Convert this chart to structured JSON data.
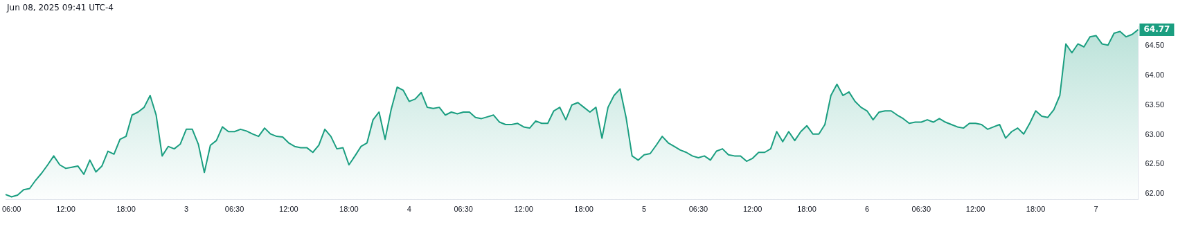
{
  "chart_data": {
    "type": "area",
    "annotations": [
      "Jun 08, 2025 09:41 UTC-4"
    ],
    "categories": [
      null,
      "06:00",
      null,
      null,
      null,
      null,
      null,
      null,
      null,
      null,
      "12:00",
      null,
      null,
      null,
      null,
      null,
      null,
      null,
      null,
      null,
      "18:00",
      null,
      null,
      null,
      null,
      null,
      null,
      null,
      null,
      null,
      "3",
      null,
      null,
      null,
      null,
      null,
      null,
      null,
      "06:30",
      null,
      null,
      null,
      null,
      null,
      null,
      null,
      null,
      "12:00",
      null,
      null,
      null,
      null,
      null,
      null,
      null,
      null,
      null,
      "18:00",
      null,
      null,
      null,
      null,
      null,
      null,
      null,
      null,
      null,
      "4",
      null,
      null,
      null,
      null,
      null,
      null,
      null,
      null,
      "06:30",
      null,
      null,
      null,
      null,
      null,
      null,
      null,
      null,
      null,
      "12:00",
      null,
      null,
      null,
      null,
      null,
      null,
      null,
      null,
      null,
      "18:00",
      null,
      null,
      null,
      null,
      null,
      null,
      null,
      null,
      null,
      "5",
      null,
      null,
      null,
      null,
      null,
      null,
      null,
      null,
      "06:30",
      null,
      null,
      null,
      null,
      null,
      null,
      null,
      null,
      "12:00",
      null,
      null,
      null,
      null,
      null,
      null,
      null,
      null,
      "18:00",
      null,
      null,
      null,
      null,
      null,
      null,
      null,
      null,
      null,
      "6",
      null,
      null,
      null,
      null,
      null,
      null,
      null,
      null,
      "06:30",
      null,
      null,
      null,
      null,
      null,
      null,
      null,
      null,
      "12:00",
      null,
      null,
      null,
      null,
      null,
      null,
      null,
      null,
      null,
      "18:00",
      null,
      null,
      null,
      null,
      null,
      null,
      null,
      null,
      null,
      "7",
      null,
      null,
      null,
      null,
      null,
      null,
      null
    ],
    "series": [
      {
        "color": "#1a9e80",
        "values": [
          61.99,
          61.95,
          61.98,
          62.07,
          62.09,
          62.23,
          62.35,
          62.49,
          62.64,
          62.49,
          62.43,
          62.45,
          62.47,
          62.33,
          62.57,
          62.37,
          62.47,
          62.72,
          62.67,
          62.92,
          62.97,
          63.33,
          63.38,
          63.46,
          63.66,
          63.33,
          62.64,
          62.8,
          62.76,
          62.84,
          63.09,
          63.09,
          62.84,
          62.36,
          62.82,
          62.9,
          63.13,
          63.05,
          63.05,
          63.09,
          63.06,
          63.01,
          62.97,
          63.11,
          63.01,
          62.97,
          62.96,
          62.86,
          62.8,
          62.78,
          62.78,
          62.7,
          62.82,
          63.09,
          62.97,
          62.76,
          62.78,
          62.49,
          62.64,
          62.8,
          62.86,
          63.25,
          63.38,
          62.92,
          63.42,
          63.8,
          63.75,
          63.56,
          63.6,
          63.71,
          63.46,
          63.44,
          63.46,
          63.33,
          63.38,
          63.35,
          63.38,
          63.38,
          63.29,
          63.27,
          63.3,
          63.33,
          63.21,
          63.17,
          63.17,
          63.19,
          63.13,
          63.11,
          63.23,
          63.19,
          63.19,
          63.4,
          63.46,
          63.25,
          63.5,
          63.54,
          63.46,
          63.38,
          63.46,
          62.94,
          63.46,
          63.66,
          63.77,
          63.29,
          62.64,
          62.57,
          62.66,
          62.68,
          62.82,
          62.97,
          62.86,
          62.8,
          62.74,
          62.7,
          62.64,
          62.61,
          62.64,
          62.57,
          62.72,
          62.76,
          62.66,
          62.64,
          62.64,
          62.55,
          62.6,
          62.7,
          62.7,
          62.76,
          63.05,
          62.88,
          63.05,
          62.9,
          63.05,
          63.15,
          63.01,
          63.01,
          63.17,
          63.66,
          63.85,
          63.66,
          63.72,
          63.56,
          63.46,
          63.4,
          63.25,
          63.38,
          63.4,
          63.4,
          63.33,
          63.27,
          63.19,
          63.21,
          63.21,
          63.25,
          63.21,
          63.27,
          63.21,
          63.17,
          63.13,
          63.11,
          63.19,
          63.19,
          63.17,
          63.09,
          63.13,
          63.17,
          62.94,
          63.05,
          63.11,
          63.01,
          63.19,
          63.4,
          63.31,
          63.29,
          63.42,
          63.66,
          64.53,
          64.38,
          64.53,
          64.48,
          64.65,
          64.67,
          64.53,
          64.51,
          64.71,
          64.74,
          64.65,
          64.69,
          64.77
        ],
        "value_labels": [
          null,
          null,
          null,
          null,
          null,
          null,
          null,
          null,
          null,
          null,
          null,
          null,
          null,
          null,
          null,
          null,
          null,
          null,
          null,
          null,
          null,
          null,
          null,
          null,
          null,
          null,
          null,
          null,
          null,
          null,
          null,
          null,
          null,
          null,
          null,
          null,
          null,
          null,
          null,
          null,
          null,
          null,
          null,
          null,
          null,
          null,
          null,
          null,
          null,
          null,
          null,
          null,
          null,
          null,
          null,
          null,
          null,
          null,
          null,
          null,
          null,
          null,
          null,
          null,
          null,
          null,
          null,
          null,
          null,
          null,
          null,
          null,
          null,
          null,
          null,
          null,
          null,
          null,
          null,
          null,
          null,
          null,
          null,
          null,
          null,
          null,
          null,
          null,
          null,
          null,
          null,
          null,
          null,
          null,
          null,
          null,
          null,
          null,
          null,
          null,
          null,
          null,
          null,
          null,
          null,
          null,
          null,
          null,
          null,
          null,
          null,
          null,
          null,
          null,
          null,
          null,
          null,
          null,
          null,
          null,
          null,
          null,
          null,
          null,
          null,
          null,
          null,
          null,
          null,
          null,
          null,
          null,
          null,
          null,
          null,
          null,
          null,
          null,
          null,
          null,
          null,
          null,
          null,
          null,
          null,
          null,
          null,
          null,
          null,
          null,
          null,
          null,
          null,
          null,
          null,
          null,
          null,
          null,
          null,
          null,
          null,
          null,
          null,
          null,
          null,
          null,
          null,
          null,
          null,
          null,
          null,
          null,
          null,
          null,
          null,
          null,
          null,
          null,
          null,
          null,
          null,
          null,
          null,
          null,
          null,
          null,
          null,
          null,
          "64.77"
        ]
      }
    ],
    "ylim": [
      61.9,
      64.82
    ],
    "yticks": [
      {
        "value": 62,
        "label": "62.00"
      },
      {
        "value": 62.5,
        "label": "62.50"
      },
      {
        "value": 63,
        "label": "63.00"
      },
      {
        "value": 63.5,
        "label": "63.50"
      },
      {
        "value": 64,
        "label": "64.00"
      },
      {
        "value": 64.5,
        "label": "64.50"
      }
    ],
    "grid": false,
    "legend": false
  }
}
